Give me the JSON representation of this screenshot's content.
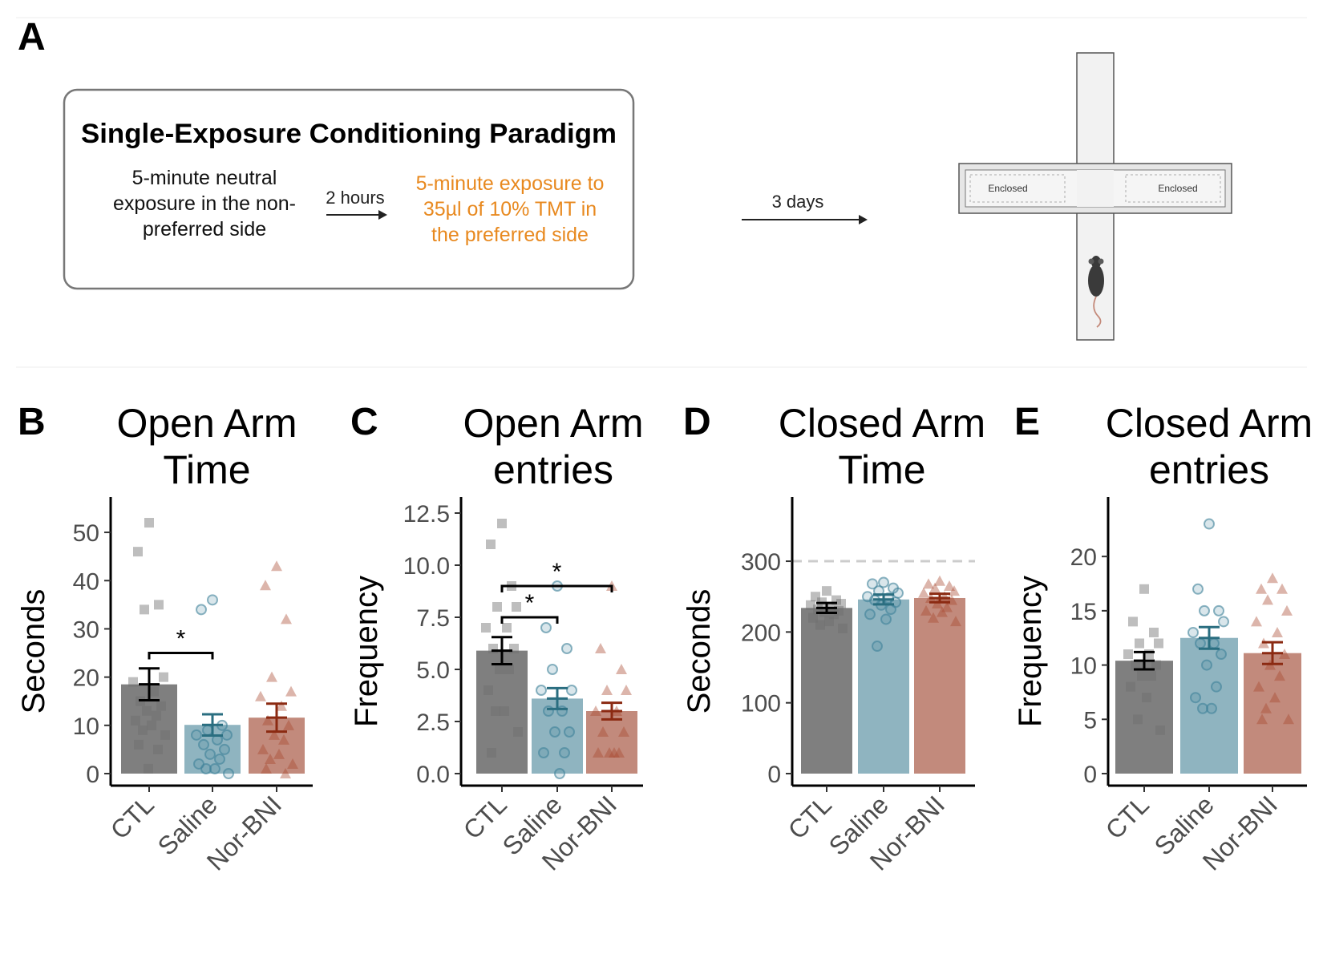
{
  "panel_a": {
    "letter": "A",
    "title": "Single-Exposure Conditioning Paradigm",
    "step1_lines": [
      "5-minute neutral",
      "exposure in the non-",
      "preferred side"
    ],
    "interval1": "2 hours",
    "step2_lines": [
      "5-minute exposure to",
      "35µl of 10% TMT in",
      "the preferred side"
    ],
    "interval2": "3 days",
    "maze_label_left": "Enclosed",
    "maze_label_right": "Enclosed",
    "icon": "mouse-icon"
  },
  "colors": {
    "CTL": "#7f7f7f",
    "Saline": "#8fb4c0",
    "Nor-BNI": "#c28a7c",
    "CTL_point": "#6e6e6e",
    "Saline_point": "#3f8299",
    "Nor-BNI_point": "#a8452e",
    "CTL_err": "#000000",
    "Saline_err": "#2a6e80",
    "Nor-BNI_err": "#8b2a12",
    "accent_orange": "#e8891f"
  },
  "chart_data": [
    {
      "panel": "B",
      "type": "bar",
      "title_lines": [
        "Open Arm",
        "Time"
      ],
      "ylabel": "Seconds",
      "ylim": [
        0,
        54
      ],
      "yticks": [
        0,
        10,
        20,
        30,
        40,
        50
      ],
      "ytick_labels": [
        "0",
        "10",
        "20",
        "30",
        "40",
        "50"
      ],
      "categories": [
        "CTL",
        "Saline",
        "Nor-BNI"
      ],
      "values": [
        18.5,
        10.1,
        11.6
      ],
      "sem": [
        3.3,
        2.2,
        2.9
      ],
      "points": [
        [
          52,
          46,
          35,
          34,
          20,
          19,
          17,
          15,
          14,
          13,
          12,
          11,
          10,
          9,
          8,
          6,
          5,
          1
        ],
        [
          36,
          34,
          10,
          9,
          8,
          8,
          7,
          6,
          5,
          4,
          3,
          2,
          1,
          1,
          0
        ],
        [
          43,
          39,
          32,
          20,
          17,
          16,
          14,
          11,
          10,
          8,
          7,
          5,
          4,
          3,
          2,
          1,
          0
        ]
      ],
      "significance": [
        {
          "from": 0,
          "to": 1,
          "y": 25,
          "label": "*"
        }
      ],
      "dashed_line": null
    },
    {
      "panel": "C",
      "type": "bar",
      "title_lines": [
        "Open Arm",
        "entries"
      ],
      "ylabel": "Frequency",
      "ylim": [
        0,
        12.5
      ],
      "yticks": [
        0,
        2.5,
        5,
        7.5,
        10,
        12.5
      ],
      "ytick_labels": [
        "0.0",
        "2.5",
        "5.0",
        "7.5",
        "10.0",
        "12.5"
      ],
      "categories": [
        "CTL",
        "Saline",
        "Nor-BNI"
      ],
      "values": [
        5.9,
        3.6,
        3.0
      ],
      "sem": [
        0.65,
        0.5,
        0.4
      ],
      "points": [
        [
          12,
          11,
          9,
          8,
          8,
          7,
          7,
          6,
          6,
          5,
          5,
          4,
          3,
          3,
          2,
          1
        ],
        [
          9,
          7,
          6,
          5,
          4,
          4,
          3,
          3,
          2,
          2,
          1,
          1,
          0
        ],
        [
          9,
          6,
          5,
          4,
          4,
          3,
          3,
          2,
          2,
          1,
          1,
          1,
          1
        ]
      ],
      "significance": [
        {
          "from": 0,
          "to": 1,
          "y": 7.5,
          "label": "*"
        },
        {
          "from": 0,
          "to": 2,
          "y": 9.0,
          "label": "*"
        }
      ],
      "dashed_line": null
    },
    {
      "panel": "D",
      "type": "bar",
      "title_lines": [
        "Closed Arm",
        "Time"
      ],
      "ylabel": "Seconds",
      "ylim": [
        0,
        368
      ],
      "yticks": [
        0,
        100,
        200,
        300
      ],
      "ytick_labels": [
        "0",
        "100",
        "200",
        "300"
      ],
      "categories": [
        "CTL",
        "Saline",
        "Nor-BNI"
      ],
      "values": [
        234,
        246,
        248
      ],
      "sem": [
        7,
        7,
        6
      ],
      "points": [
        [
          258,
          250,
          245,
          242,
          240,
          238,
          235,
          232,
          230,
          228,
          225,
          220,
          215,
          210,
          205
        ],
        [
          270,
          268,
          262,
          258,
          255,
          250,
          248,
          245,
          242,
          238,
          232,
          225,
          218,
          180
        ],
        [
          272,
          268,
          265,
          262,
          258,
          255,
          250,
          248,
          245,
          240,
          235,
          230,
          228,
          220,
          215
        ]
      ],
      "significance": [],
      "dashed_line": 300
    },
    {
      "panel": "E",
      "type": "bar",
      "title_lines": [
        "Closed Arm",
        "entries"
      ],
      "ylabel": "Frequency",
      "ylim": [
        0,
        24
      ],
      "yticks": [
        0,
        5,
        10,
        15,
        20
      ],
      "ytick_labels": [
        "0",
        "5",
        "10",
        "15",
        "20"
      ],
      "categories": [
        "CTL",
        "Saline",
        "Nor-BNI"
      ],
      "values": [
        10.4,
        12.5,
        11.1
      ],
      "sem": [
        0.8,
        1.0,
        1.0
      ],
      "points": [
        [
          17,
          14,
          13,
          12,
          12,
          11,
          11,
          10,
          10,
          9,
          9,
          8,
          7,
          5,
          4
        ],
        [
          23,
          17,
          15,
          15,
          14,
          13,
          12,
          12,
          11,
          10,
          8,
          7,
          6,
          6
        ],
        [
          18,
          17,
          17,
          16,
          15,
          14,
          13,
          12,
          11,
          10,
          9,
          8,
          7,
          6,
          5,
          5
        ]
      ],
      "significance": [],
      "dashed_line": null
    }
  ]
}
